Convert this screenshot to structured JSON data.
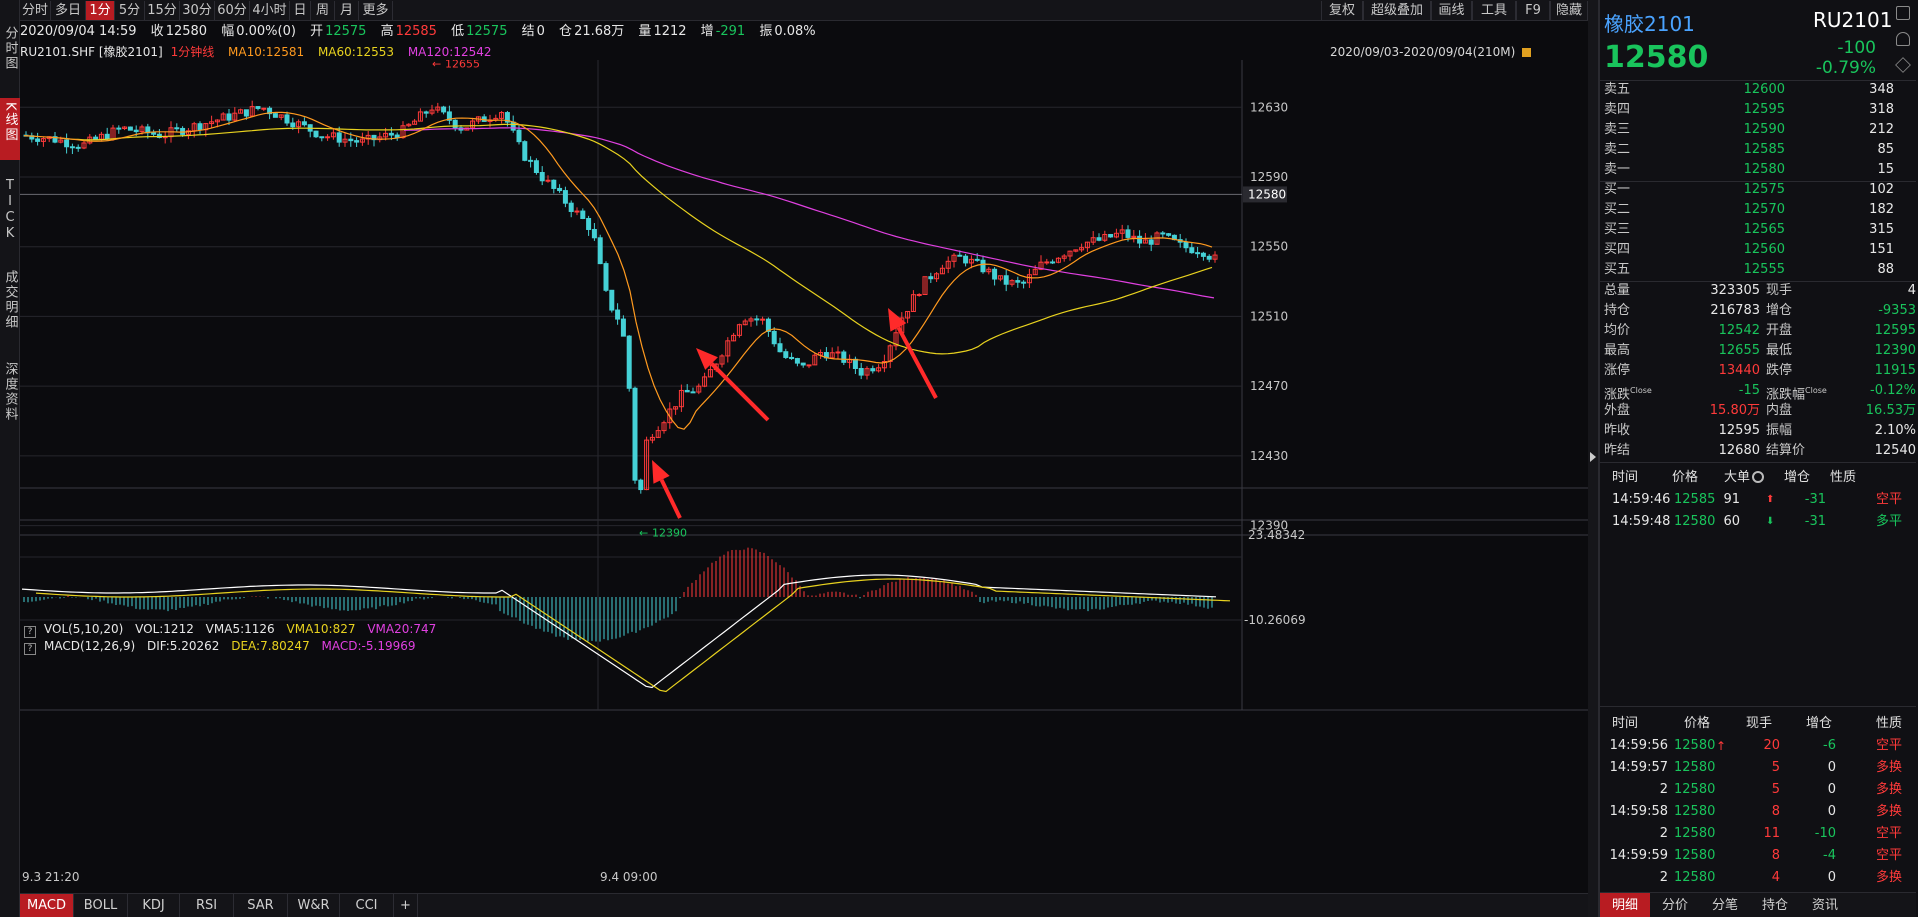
{
  "left_nav": [
    "分时图",
    "K线图",
    "TICK",
    "成交明细",
    "深度资料"
  ],
  "toolbar": {
    "periods": [
      "分时",
      "多日",
      "1分",
      "5分",
      "15分",
      "30分",
      "60分",
      "4小时",
      "日",
      "周",
      "月",
      "更多"
    ],
    "active_period": "1分",
    "right_buttons": [
      "复权",
      "超级叠加",
      "画线",
      "工具",
      "F9",
      "隐藏"
    ]
  },
  "info_bar": {
    "datetime": "2020/09/04 14:59",
    "close_label": "收",
    "close": "12580",
    "change_label": "幅",
    "change": "0.00%(0)",
    "open_label": "开",
    "open": "12575",
    "high_label": "高",
    "high": "12585",
    "low_label": "低",
    "low": "12575",
    "settle_label": "结",
    "settle": "0",
    "oi_label": "仓",
    "oi": "21.68万",
    "volume_label": "量",
    "volume": "1212",
    "oi_change_label": "增",
    "oi_change": "-291",
    "amplitude_label": "振",
    "amplitude": "0.08%"
  },
  "ma_row": {
    "symbol": "RU2101.SHF [橡胶2101]",
    "period": "1分钟线",
    "ma10": "MA10:12581",
    "ma60": "MA60:12553",
    "ma120": "MA120:12542"
  },
  "date_range": "2020/09/03-2020/09/04(210M)",
  "vol_indicator": {
    "name": "VOL(5,10,20)",
    "vol": "VOL:1212",
    "vma5": "VMA5:1126",
    "vma10": "VMA10:827",
    "vma20": "VMA20:747"
  },
  "macd_indicator": {
    "name": "MACD(12,26,9)",
    "dif": "DIF:5.20262",
    "dea": "DEA:7.80247",
    "macd": "MACD:-5.19969"
  },
  "chart_data": {
    "type": "candlestick",
    "price_axis_ticks": [
      12630,
      12590,
      12550,
      12510,
      12470,
      12430,
      12390
    ],
    "ylim": [
      12380,
      12660
    ],
    "current_price_label": "12580",
    "high_marker": "12655",
    "low_marker": "12390",
    "macd_axis_ticks": [
      "23.48342",
      "-10.26069"
    ],
    "time_labels": [
      "9.3 21:20",
      "9.4 09:00"
    ],
    "series": [
      {
        "name": "MA10",
        "color": "#ff9a1f"
      },
      {
        "name": "MA60",
        "color": "#e8d21f"
      },
      {
        "name": "MA120",
        "color": "#e040e0"
      }
    ],
    "annotation_arrows": 3
  },
  "bottom_tabs": [
    "MACD",
    "BOLL",
    "KDJ",
    "RSI",
    "SAR",
    "W&R",
    "CCI",
    "+"
  ],
  "quote": {
    "name": "橡胶2101",
    "code": "RU2101",
    "last": "12580",
    "change": "-100",
    "change_pct": "-0.79%"
  },
  "order_book": [
    {
      "label": "卖五",
      "price": "12600",
      "vol": "348"
    },
    {
      "label": "卖四",
      "price": "12595",
      "vol": "318"
    },
    {
      "label": "卖三",
      "price": "12590",
      "vol": "212"
    },
    {
      "label": "卖二",
      "price": "12585",
      "vol": "85"
    },
    {
      "label": "卖一",
      "price": "12580",
      "vol": "15"
    },
    {
      "label": "买一",
      "price": "12575",
      "vol": "102"
    },
    {
      "label": "买二",
      "price": "12570",
      "vol": "182"
    },
    {
      "label": "买三",
      "price": "12565",
      "vol": "315"
    },
    {
      "label": "买四",
      "price": "12560",
      "vol": "151"
    },
    {
      "label": "买五",
      "price": "12555",
      "vol": "88"
    }
  ],
  "stats": [
    {
      "l1": "总量",
      "v1": "323305",
      "c1": "white",
      "l2": "现手",
      "v2": "4",
      "c2": "white"
    },
    {
      "l1": "持仓",
      "v1": "216783",
      "c1": "white",
      "l2": "增仓",
      "v2": "-9353",
      "c2": "green"
    },
    {
      "l1": "均价",
      "v1": "12542",
      "c1": "green",
      "l2": "开盘",
      "v2": "12595",
      "c2": "green"
    },
    {
      "l1": "最高",
      "v1": "12655",
      "c1": "green",
      "l2": "最低",
      "v2": "12390",
      "c2": "green"
    },
    {
      "l1": "涨停",
      "v1": "13440",
      "c1": "red",
      "l2": "跌停",
      "v2": "11915",
      "c2": "green"
    },
    {
      "l1": "涨跌",
      "l1sup": "Close",
      "v1": "-15",
      "c1": "green",
      "l2": "涨跌幅",
      "l2sup": "Close",
      "v2": "-0.12%",
      "c2": "green"
    },
    {
      "l1": "外盘",
      "v1": "15.80万",
      "c1": "red",
      "l2": "内盘",
      "v2": "16.53万",
      "c2": "green"
    },
    {
      "l1": "昨收",
      "v1": "12595",
      "c1": "white",
      "l2": "振幅",
      "v2": "2.10%",
      "c2": "white"
    },
    {
      "l1": "昨结",
      "v1": "12680",
      "c1": "white",
      "l2": "结算价",
      "v2": "12540",
      "c2": "white"
    }
  ],
  "big_trades": {
    "headers": [
      "时间",
      "价格",
      "大单",
      "增仓",
      "性质"
    ],
    "rows": [
      {
        "time": "14:59:46",
        "price": "12585",
        "vol": "91",
        "dir": "up",
        "oi": "-31",
        "nature": "空平",
        "nature_color": "red"
      },
      {
        "time": "14:59:48",
        "price": "12580",
        "vol": "60",
        "dir": "down",
        "oi": "-31",
        "nature": "多平",
        "nature_color": "green"
      }
    ]
  },
  "ticks": {
    "headers": [
      "时间",
      "价格",
      "现手",
      "增仓",
      "性质"
    ],
    "rows": [
      {
        "time": "14:59:56",
        "price": "12580",
        "arrow": "↑",
        "vol": "20",
        "oi": "-6",
        "nature": "空平",
        "nc": "red"
      },
      {
        "time": "14:59:57",
        "price": "12580",
        "arrow": "",
        "vol": "5",
        "oi": "0",
        "nature": "多换",
        "nc": "red"
      },
      {
        "time": "2",
        "price": "12580",
        "arrow": "",
        "vol": "5",
        "oi": "0",
        "nature": "多换",
        "nc": "red"
      },
      {
        "time": "14:59:58",
        "price": "12580",
        "arrow": "",
        "vol": "8",
        "oi": "0",
        "nature": "多换",
        "nc": "red"
      },
      {
        "time": "2",
        "price": "12580",
        "arrow": "",
        "vol": "11",
        "oi": "-10",
        "nature": "空平",
        "nc": "red"
      },
      {
        "time": "14:59:59",
        "price": "12580",
        "arrow": "",
        "vol": "8",
        "oi": "-4",
        "nature": "空平",
        "nc": "red"
      },
      {
        "time": "2",
        "price": "12580",
        "arrow": "",
        "vol": "4",
        "oi": "0",
        "nature": "多换",
        "nc": "red"
      }
    ]
  },
  "right_bottom_tabs": [
    "明细",
    "分价",
    "分笔",
    "持仓",
    "资讯"
  ],
  "colors": {
    "up": "#ff3a3a",
    "down": "#19c45c",
    "candle_down": "#45d1d6",
    "accent": "#b81c22"
  }
}
